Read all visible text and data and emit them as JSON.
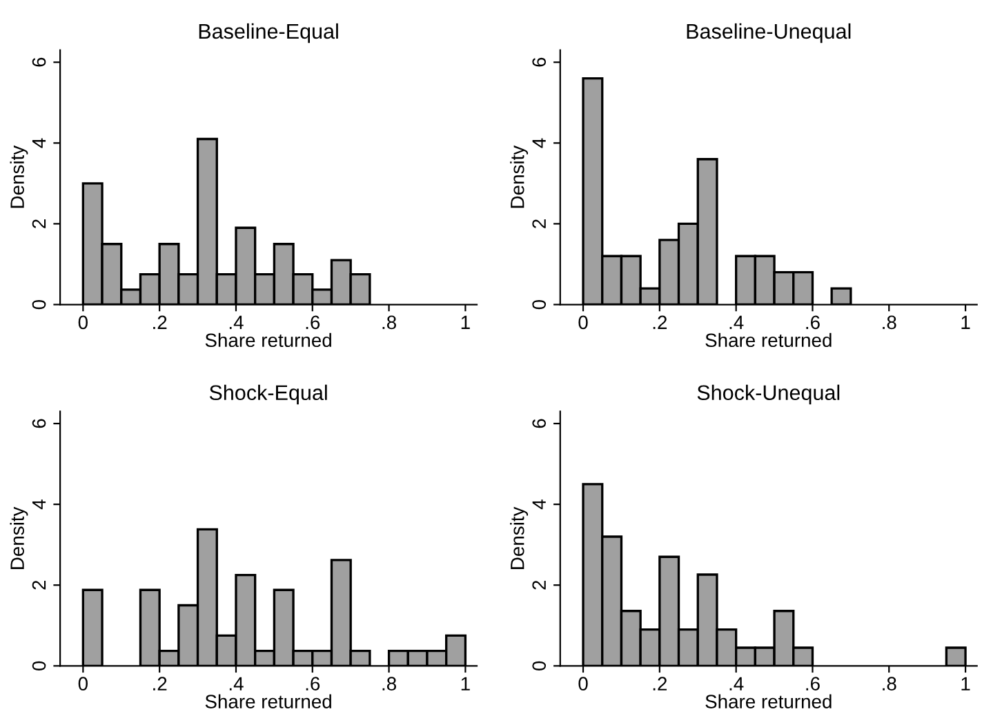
{
  "chart_data": [
    {
      "type": "histogram",
      "title": "Baseline-Equal",
      "xlabel": "Share returned",
      "ylabel": "Density",
      "color": "#a0a0a0",
      "bins": [
        0,
        0.05,
        0.1,
        0.15,
        0.2,
        0.25,
        0.3,
        0.35,
        0.4,
        0.45,
        0.5,
        0.55,
        0.6,
        0.65,
        0.7,
        0.75,
        0.8,
        0.85,
        0.9,
        0.95,
        1
      ],
      "values": [
        3.0,
        1.5,
        0.37,
        0.75,
        1.5,
        0.75,
        4.1,
        0.75,
        1.9,
        0.75,
        1.5,
        0.75,
        0.37,
        1.1,
        0.75,
        0,
        0,
        0,
        0,
        0
      ],
      "xlim": [
        -0.06,
        1.03
      ],
      "ylim": [
        0,
        6.3
      ],
      "xticks": [
        0,
        {
          "value": 0.2,
          "label": ".2"
        },
        {
          "value": 0.4,
          "label": ".4"
        },
        {
          "value": 0.6,
          "label": ".6"
        },
        {
          "value": 0.8,
          "label": ".8"
        },
        1
      ],
      "yticks": [
        0,
        2,
        4,
        6
      ],
      "grid": false
    },
    {
      "type": "histogram",
      "title": "Baseline-Unequal",
      "xlabel": "Share returned",
      "ylabel": "Density",
      "color": "#a0a0a0",
      "bins": [
        0,
        0.05,
        0.1,
        0.15,
        0.2,
        0.25,
        0.3,
        0.35,
        0.4,
        0.45,
        0.5,
        0.55,
        0.6,
        0.65,
        0.7,
        0.75,
        0.8,
        0.85,
        0.9,
        0.95,
        1
      ],
      "values": [
        5.6,
        1.2,
        1.2,
        0.4,
        1.6,
        2.0,
        3.6,
        0,
        1.2,
        1.2,
        0.8,
        0.8,
        0,
        0.4,
        0,
        0,
        0,
        0,
        0,
        0
      ],
      "xlim": [
        -0.06,
        1.03
      ],
      "ylim": [
        0,
        6.3
      ],
      "xticks": [
        0,
        {
          "value": 0.2,
          "label": ".2"
        },
        {
          "value": 0.4,
          "label": ".4"
        },
        {
          "value": 0.6,
          "label": ".6"
        },
        {
          "value": 0.8,
          "label": ".8"
        },
        1
      ],
      "yticks": [
        0,
        2,
        4,
        6
      ],
      "grid": false
    },
    {
      "type": "histogram",
      "title": "Shock-Equal",
      "xlabel": "Share returned",
      "ylabel": "Density",
      "color": "#a0a0a0",
      "bins": [
        0,
        0.05,
        0.1,
        0.15,
        0.2,
        0.25,
        0.3,
        0.35,
        0.4,
        0.45,
        0.5,
        0.55,
        0.6,
        0.65,
        0.7,
        0.75,
        0.8,
        0.85,
        0.9,
        0.95,
        1
      ],
      "values": [
        1.88,
        0,
        0,
        1.88,
        0.37,
        1.5,
        3.38,
        0.75,
        2.25,
        0.37,
        1.88,
        0.37,
        0.37,
        2.62,
        0.37,
        0,
        0.37,
        0.37,
        0.37,
        0.75
      ],
      "xlim": [
        -0.06,
        1.03
      ],
      "ylim": [
        0,
        6.3
      ],
      "xticks": [
        0,
        {
          "value": 0.2,
          "label": ".2"
        },
        {
          "value": 0.4,
          "label": ".4"
        },
        {
          "value": 0.6,
          "label": ".6"
        },
        {
          "value": 0.8,
          "label": ".8"
        },
        1
      ],
      "yticks": [
        0,
        2,
        4,
        6
      ],
      "grid": false
    },
    {
      "type": "histogram",
      "title": "Shock-Unequal",
      "xlabel": "Share returned",
      "ylabel": "Density",
      "color": "#a0a0a0",
      "bins": [
        0,
        0.05,
        0.1,
        0.15,
        0.2,
        0.25,
        0.3,
        0.35,
        0.4,
        0.45,
        0.5,
        0.55,
        0.6,
        0.65,
        0.7,
        0.75,
        0.8,
        0.85,
        0.9,
        0.95,
        1
      ],
      "values": [
        4.5,
        3.2,
        1.36,
        0.9,
        2.7,
        0.9,
        2.26,
        0.9,
        0.45,
        0.45,
        1.36,
        0.45,
        0,
        0,
        0,
        0,
        0,
        0,
        0,
        0.45
      ],
      "xlim": [
        -0.06,
        1.03
      ],
      "ylim": [
        0,
        6.3
      ],
      "xticks": [
        0,
        {
          "value": 0.2,
          "label": ".2"
        },
        {
          "value": 0.4,
          "label": ".4"
        },
        {
          "value": 0.6,
          "label": ".6"
        },
        {
          "value": 0.8,
          "label": ".8"
        },
        1
      ],
      "yticks": [
        0,
        2,
        4,
        6
      ],
      "grid": false
    }
  ]
}
